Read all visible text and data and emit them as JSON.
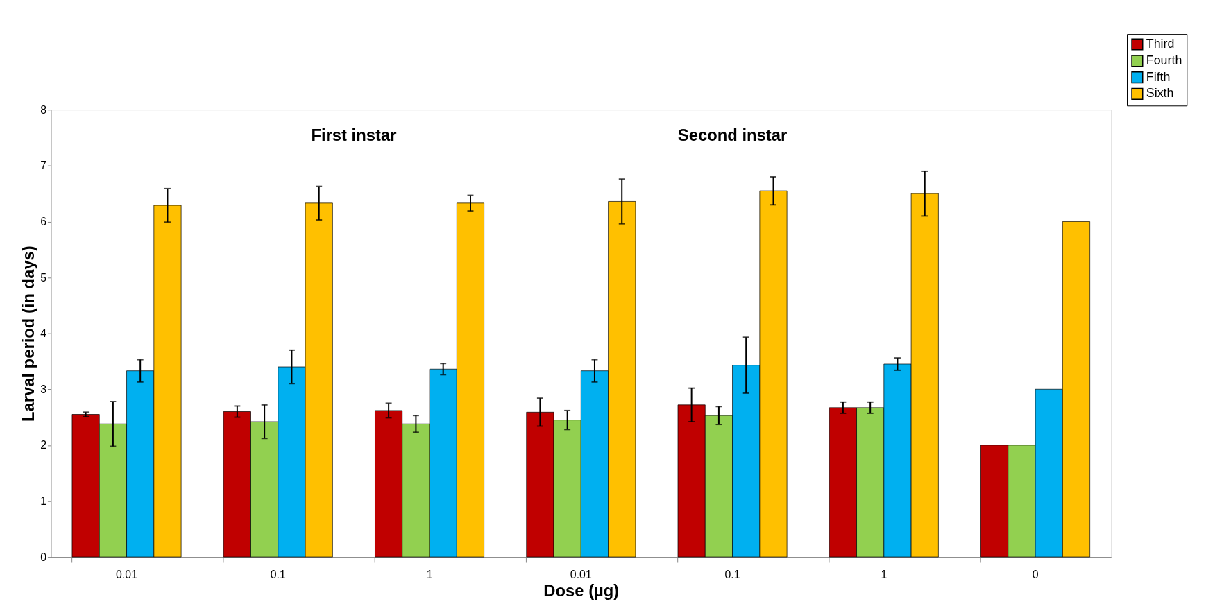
{
  "chart_data": {
    "type": "bar",
    "xlabel": "Dose (µg)",
    "ylabel": "Larval period (in days)",
    "categories": [
      "0.01",
      "0.1",
      "1",
      "0.01",
      "0.1",
      "1",
      "0"
    ],
    "series": [
      {
        "name": "Third",
        "color": "#c00000",
        "values": [
          2.55,
          2.6,
          2.62,
          2.59,
          2.72,
          2.67,
          2
        ],
        "errors": [
          0.04,
          0.1,
          0.13,
          0.25,
          0.3,
          0.1,
          null
        ]
      },
      {
        "name": "Fourth",
        "color": "#92d050",
        "values": [
          2.38,
          2.42,
          2.38,
          2.45,
          2.53,
          2.67,
          2
        ],
        "errors": [
          0.4,
          0.3,
          0.15,
          0.17,
          0.16,
          0.1,
          null
        ]
      },
      {
        "name": "Fifth",
        "color": "#00b0f0",
        "values": [
          3.33,
          3.4,
          3.36,
          3.33,
          3.43,
          3.45,
          3
        ],
        "errors": [
          0.2,
          0.3,
          0.1,
          0.2,
          0.5,
          0.11,
          null
        ]
      },
      {
        "name": "Sixth",
        "color": "#ffc000",
        "values": [
          6.29,
          6.33,
          6.33,
          6.36,
          6.55,
          6.5,
          6
        ],
        "errors": [
          0.3,
          0.3,
          0.14,
          0.4,
          0.25,
          0.4,
          null
        ]
      }
    ],
    "annotations": [
      "First instar",
      "Second instar"
    ],
    "ylim": [
      0,
      8
    ],
    "yticks": [
      0,
      1,
      2,
      3,
      4,
      5,
      6,
      7,
      8
    ],
    "grid": false,
    "legend": "top right"
  }
}
